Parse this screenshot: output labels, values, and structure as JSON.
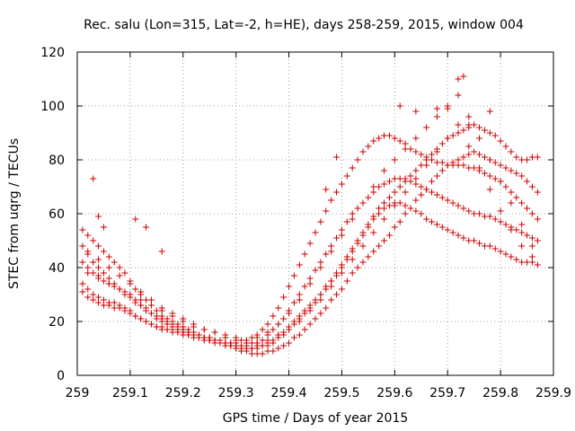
{
  "chart_data": {
    "type": "scatter",
    "title": "Rec. salu (Lon=315, Lat=-2, h=HE), days 258-259, 2015, window 004",
    "xlabel": "GPS time / Days of year 2015",
    "ylabel": "STEC from uqrg / TECUs",
    "xlim": [
      259,
      259.9
    ],
    "ylim": [
      0,
      120
    ],
    "x_ticks": [
      "259",
      "259.1",
      "259.2",
      "259.3",
      "259.4",
      "259.5",
      "259.6",
      "259.7",
      "259.8",
      "259.9"
    ],
    "y_ticks": [
      "0",
      "20",
      "40",
      "60",
      "80",
      "100",
      "120"
    ],
    "grid": true,
    "marker": "+",
    "color": "#cc0000",
    "series": [
      {
        "x": [
          259.01,
          259.02,
          259.03,
          259.04,
          259.05,
          259.06,
          259.07,
          259.08,
          259.09,
          259.1,
          259.11,
          259.12,
          259.13,
          259.14,
          259.15,
          259.16,
          259.17,
          259.18,
          259.19,
          259.2,
          259.21,
          259.22,
          259.23,
          259.24,
          259.25,
          259.26,
          259.27,
          259.28,
          259.29,
          259.3,
          259.31,
          259.32,
          259.33,
          259.34,
          259.35,
          259.36,
          259.37,
          259.38,
          259.39,
          259.4,
          259.41,
          259.42,
          259.43,
          259.44,
          259.45,
          259.46,
          259.47,
          259.48,
          259.49,
          259.5,
          259.51,
          259.52,
          259.53,
          259.54,
          259.55,
          259.56,
          259.57,
          259.58,
          259.59,
          259.6,
          259.61,
          259.62,
          259.63,
          259.64,
          259.65,
          259.66,
          259.67,
          259.68,
          259.69,
          259.7,
          259.71,
          259.72,
          259.73,
          259.74,
          259.75,
          259.76,
          259.77,
          259.78,
          259.79,
          259.8,
          259.81,
          259.82,
          259.83,
          259.84,
          259.85,
          259.86,
          259.87
        ],
        "y": [
          54,
          52,
          50,
          48,
          46,
          44,
          42,
          40,
          38,
          35,
          32,
          30,
          28,
          26,
          24,
          22,
          21,
          20,
          19,
          18,
          17,
          16,
          15,
          14,
          14,
          13,
          13,
          12,
          12,
          12,
          13,
          13,
          14,
          15,
          17,
          19,
          22,
          25,
          29,
          33,
          37,
          41,
          45,
          49,
          53,
          57,
          61,
          65,
          68,
          71,
          74,
          77,
          80,
          83,
          85,
          87,
          88,
          89,
          89,
          88,
          87,
          86,
          84,
          83,
          82,
          81,
          80,
          79,
          79,
          78,
          78,
          78,
          78,
          77,
          77,
          76,
          75,
          74,
          73,
          72,
          70,
          68,
          66,
          64,
          62,
          60,
          58
        ]
      },
      {
        "x": [
          259.01,
          259.02,
          259.03,
          259.04,
          259.05,
          259.06,
          259.07,
          259.08,
          259.09,
          259.1,
          259.11,
          259.12,
          259.13,
          259.14,
          259.15,
          259.16,
          259.17,
          259.18,
          259.19,
          259.2,
          259.21,
          259.22,
          259.23,
          259.24,
          259.25,
          259.26,
          259.27,
          259.28,
          259.29,
          259.3,
          259.31,
          259.32,
          259.33,
          259.34,
          259.35,
          259.36,
          259.37,
          259.38,
          259.39,
          259.4,
          259.41,
          259.42,
          259.43,
          259.44,
          259.45,
          259.46,
          259.47,
          259.48,
          259.49,
          259.5,
          259.51,
          259.52,
          259.53,
          259.54,
          259.55,
          259.56,
          259.57,
          259.58,
          259.59,
          259.6,
          259.61,
          259.62,
          259.63,
          259.64,
          259.65,
          259.66,
          259.67,
          259.68,
          259.69,
          259.7,
          259.71,
          259.72,
          259.73,
          259.74,
          259.75,
          259.76,
          259.77,
          259.78,
          259.79,
          259.8,
          259.81,
          259.82,
          259.83,
          259.84,
          259.85,
          259.86,
          259.87
        ],
        "y": [
          42,
          40,
          38,
          37,
          35,
          34,
          33,
          32,
          31,
          30,
          28,
          26,
          25,
          23,
          22,
          21,
          20,
          19,
          18,
          17,
          16,
          15,
          15,
          14,
          14,
          13,
          13,
          12,
          12,
          11,
          11,
          11,
          12,
          12,
          13,
          15,
          17,
          19,
          21,
          24,
          27,
          30,
          33,
          36,
          39,
          42,
          45,
          48,
          51,
          54,
          57,
          60,
          62,
          64,
          66,
          68,
          70,
          71,
          72,
          73,
          73,
          73,
          72,
          71,
          70,
          69,
          68,
          67,
          66,
          65,
          64,
          63,
          62,
          61,
          60,
          60,
          59,
          59,
          58,
          57,
          56,
          55,
          54,
          53,
          52,
          51,
          50
        ]
      },
      {
        "x": [
          259.01,
          259.02,
          259.03,
          259.04,
          259.05,
          259.06,
          259.07,
          259.08,
          259.09,
          259.1,
          259.11,
          259.12,
          259.13,
          259.14,
          259.15,
          259.16,
          259.17,
          259.18,
          259.19,
          259.2,
          259.21,
          259.22,
          259.23,
          259.24,
          259.25,
          259.26,
          259.27,
          259.28,
          259.29,
          259.3,
          259.31,
          259.32,
          259.33,
          259.34,
          259.35,
          259.36,
          259.37,
          259.38,
          259.39,
          259.4,
          259.41,
          259.42,
          259.43,
          259.44,
          259.45,
          259.46,
          259.47,
          259.48,
          259.49,
          259.5,
          259.51,
          259.52,
          259.53,
          259.54,
          259.55,
          259.56,
          259.57,
          259.58,
          259.59,
          259.6,
          259.61,
          259.62,
          259.63,
          259.64,
          259.65,
          259.66,
          259.67,
          259.68,
          259.69,
          259.7,
          259.71,
          259.72,
          259.73,
          259.74,
          259.75,
          259.76,
          259.77,
          259.78,
          259.79,
          259.8,
          259.81,
          259.82,
          259.83,
          259.84,
          259.85,
          259.86,
          259.87
        ],
        "y": [
          34,
          32,
          30,
          29,
          28,
          27,
          27,
          26,
          25,
          24,
          22,
          21,
          20,
          19,
          18,
          17,
          17,
          16,
          16,
          15,
          15,
          14,
          14,
          13,
          13,
          12,
          12,
          11,
          11,
          10,
          10,
          10,
          10,
          11,
          11,
          12,
          13,
          15,
          16,
          18,
          20,
          22,
          24,
          26,
          28,
          30,
          33,
          35,
          38,
          41,
          44,
          47,
          50,
          53,
          56,
          59,
          62,
          64,
          66,
          68,
          70,
          72,
          74,
          76,
          78,
          80,
          82,
          84,
          86,
          88,
          89,
          90,
          91,
          92,
          93,
          92,
          91,
          90,
          89,
          87,
          85,
          83,
          81,
          80,
          80,
          81,
          81
        ]
      },
      {
        "x": [
          259.01,
          259.02,
          259.03,
          259.04,
          259.05,
          259.06,
          259.07,
          259.08,
          259.09,
          259.1,
          259.11,
          259.12,
          259.13,
          259.14,
          259.15,
          259.16,
          259.17,
          259.18,
          259.19,
          259.2,
          259.21,
          259.22,
          259.23,
          259.24,
          259.25,
          259.26,
          259.27,
          259.28,
          259.29,
          259.3,
          259.31,
          259.32,
          259.33,
          259.34,
          259.35,
          259.36,
          259.37,
          259.38,
          259.39,
          259.4,
          259.41,
          259.42,
          259.43,
          259.44,
          259.45,
          259.46,
          259.47,
          259.48,
          259.49,
          259.5,
          259.51,
          259.52,
          259.53,
          259.54,
          259.55,
          259.56,
          259.57,
          259.58,
          259.59,
          259.6,
          259.61,
          259.62,
          259.63,
          259.64,
          259.65,
          259.66,
          259.67,
          259.68,
          259.69,
          259.7,
          259.71,
          259.72,
          259.73,
          259.74,
          259.75,
          259.76,
          259.77,
          259.78,
          259.79,
          259.8,
          259.81,
          259.82,
          259.83,
          259.84,
          259.85,
          259.86,
          259.87
        ],
        "y": [
          48,
          45,
          42,
          40,
          38,
          36,
          34,
          32,
          30,
          29,
          27,
          26,
          24,
          23,
          21,
          20,
          19,
          18,
          17,
          16,
          16,
          15,
          14,
          14,
          13,
          13,
          12,
          12,
          11,
          11,
          10,
          10,
          10,
          10,
          11,
          11,
          12,
          14,
          15,
          17,
          19,
          21,
          23,
          25,
          27,
          30,
          32,
          35,
          37,
          40,
          43,
          46,
          49,
          52,
          55,
          58,
          60,
          62,
          63,
          64,
          64,
          63,
          62,
          61,
          60,
          58,
          57,
          56,
          55,
          54,
          53,
          52,
          51,
          50,
          50,
          49,
          48,
          48,
          47,
          46,
          45,
          44,
          43,
          42,
          42,
          42,
          41
        ]
      },
      {
        "x": [
          259.01,
          259.02,
          259.03,
          259.04,
          259.05,
          259.06,
          259.07,
          259.08,
          259.09,
          259.1,
          259.11,
          259.12,
          259.13,
          259.14,
          259.15,
          259.16,
          259.17,
          259.18,
          259.19,
          259.2,
          259.21,
          259.22,
          259.23,
          259.24,
          259.25,
          259.26,
          259.27,
          259.28,
          259.29,
          259.3,
          259.31,
          259.32,
          259.33,
          259.34,
          259.35,
          259.36,
          259.37,
          259.38,
          259.39,
          259.4,
          259.41,
          259.42,
          259.43,
          259.44,
          259.45,
          259.46,
          259.47,
          259.48,
          259.49,
          259.5,
          259.51,
          259.52,
          259.53,
          259.54,
          259.55,
          259.56,
          259.57,
          259.58,
          259.59,
          259.6,
          259.61,
          259.62,
          259.63,
          259.64,
          259.65,
          259.66,
          259.67,
          259.68,
          259.69,
          259.7,
          259.71,
          259.72,
          259.73,
          259.74,
          259.75,
          259.76,
          259.77,
          259.78,
          259.79,
          259.8,
          259.81,
          259.82,
          259.83,
          259.84,
          259.85,
          259.86,
          259.87
        ],
        "y": [
          31,
          29,
          28,
          27,
          26,
          26,
          25,
          25,
          24,
          23,
          22,
          21,
          20,
          19,
          18,
          18,
          17,
          17,
          16,
          16,
          15,
          15,
          14,
          14,
          13,
          13,
          12,
          12,
          11,
          10,
          9,
          9,
          8,
          8,
          8,
          9,
          9,
          10,
          11,
          12,
          14,
          15,
          17,
          19,
          21,
          23,
          25,
          28,
          30,
          32,
          35,
          38,
          40,
          42,
          44,
          46,
          48,
          50,
          52,
          55,
          57,
          60,
          62,
          65,
          67,
          69,
          72,
          74,
          76,
          78,
          79,
          80,
          81,
          82,
          83,
          82,
          81,
          80,
          79,
          78,
          77,
          76,
          75,
          74,
          72,
          70,
          68
        ]
      },
      {
        "x": [
          259.02,
          259.04,
          259.06,
          259.08,
          259.1,
          259.12,
          259.14,
          259.16,
          259.18,
          259.2,
          259.22,
          259.24,
          259.26,
          259.28,
          259.3,
          259.32,
          259.34,
          259.36,
          259.38,
          259.4,
          259.42,
          259.44,
          259.46,
          259.48,
          259.5,
          259.52,
          259.54,
          259.56,
          259.58,
          259.6,
          259.62,
          259.64,
          259.66,
          259.68,
          259.7,
          259.72,
          259.74,
          259.76,
          259.78,
          259.8,
          259.82,
          259.84,
          259.86
        ],
        "y": [
          46,
          43,
          40,
          37,
          34,
          31,
          28,
          25,
          23,
          21,
          19,
          17,
          16,
          15,
          14,
          13,
          14,
          16,
          19,
          23,
          28,
          34,
          40,
          46,
          52,
          58,
          64,
          70,
          76,
          80,
          84,
          88,
          92,
          96,
          100,
          104,
          96,
          88,
          80,
          72,
          64,
          56,
          48
        ]
      },
      {
        "x": [
          259.02,
          259.04,
          259.06,
          259.08,
          259.1,
          259.12,
          259.14,
          259.16,
          259.18,
          259.2,
          259.22,
          259.24,
          259.26,
          259.28,
          259.3,
          259.32,
          259.34,
          259.36,
          259.38,
          259.4,
          259.42,
          259.44,
          259.46,
          259.48,
          259.5,
          259.52,
          259.54,
          259.56,
          259.58,
          259.6,
          259.62,
          259.64,
          259.66,
          259.68,
          259.7,
          259.72,
          259.74,
          259.76,
          259.78,
          259.8,
          259.82,
          259.84,
          259.86
        ],
        "y": [
          38,
          36,
          34,
          32,
          30,
          28,
          26,
          24,
          22,
          20,
          18,
          17,
          16,
          14,
          13,
          12,
          12,
          13,
          15,
          17,
          20,
          24,
          28,
          33,
          38,
          43,
          48,
          53,
          58,
          63,
          68,
          73,
          78,
          83,
          88,
          93,
          85,
          77,
          69,
          61,
          54,
          48,
          44
        ]
      },
      {
        "x": [
          259.03,
          259.04,
          259.05,
          259.11,
          259.13,
          259.16,
          259.47,
          259.49,
          259.61,
          259.64,
          259.68,
          259.7,
          259.72,
          259.73,
          259.74,
          259.78,
          259.81
        ],
        "y": [
          73,
          59,
          55,
          58,
          55,
          46,
          69,
          81,
          100,
          98,
          99,
          99,
          110,
          111,
          93,
          98,
          85
        ]
      }
    ]
  }
}
